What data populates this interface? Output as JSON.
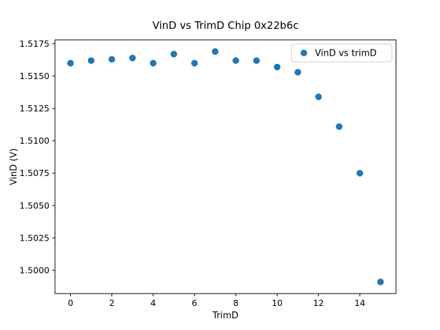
{
  "chart_data": {
    "type": "scatter",
    "title": "VinD vs TrimD Chip 0x22b6c",
    "xlabel": "TrimD",
    "ylabel": "VinD (V)",
    "legend": {
      "label": "VinD vs trimD",
      "position": "upper right"
    },
    "marker_color": "#1f77b4",
    "axis_color": "#000000",
    "legend_border_color": "#cccccc",
    "x": [
      0,
      1,
      2,
      3,
      4,
      5,
      6,
      7,
      8,
      9,
      10,
      11,
      12,
      13,
      14,
      15
    ],
    "y": [
      1.516,
      1.5162,
      1.5163,
      1.5164,
      1.516,
      1.5167,
      1.516,
      1.5169,
      1.5162,
      1.5162,
      1.5157,
      1.5153,
      1.5134,
      1.5111,
      1.5075,
      1.4991
    ],
    "xlim": [
      -0.75,
      15.75
    ],
    "ylim": [
      1.4982,
      1.5178
    ],
    "xticks": [
      0,
      2,
      4,
      6,
      8,
      10,
      12,
      14
    ],
    "yticks": [
      1.5,
      1.5025,
      1.505,
      1.5075,
      1.51,
      1.5125,
      1.515,
      1.5175
    ],
    "ytick_decimals": 4,
    "grid": false
  }
}
